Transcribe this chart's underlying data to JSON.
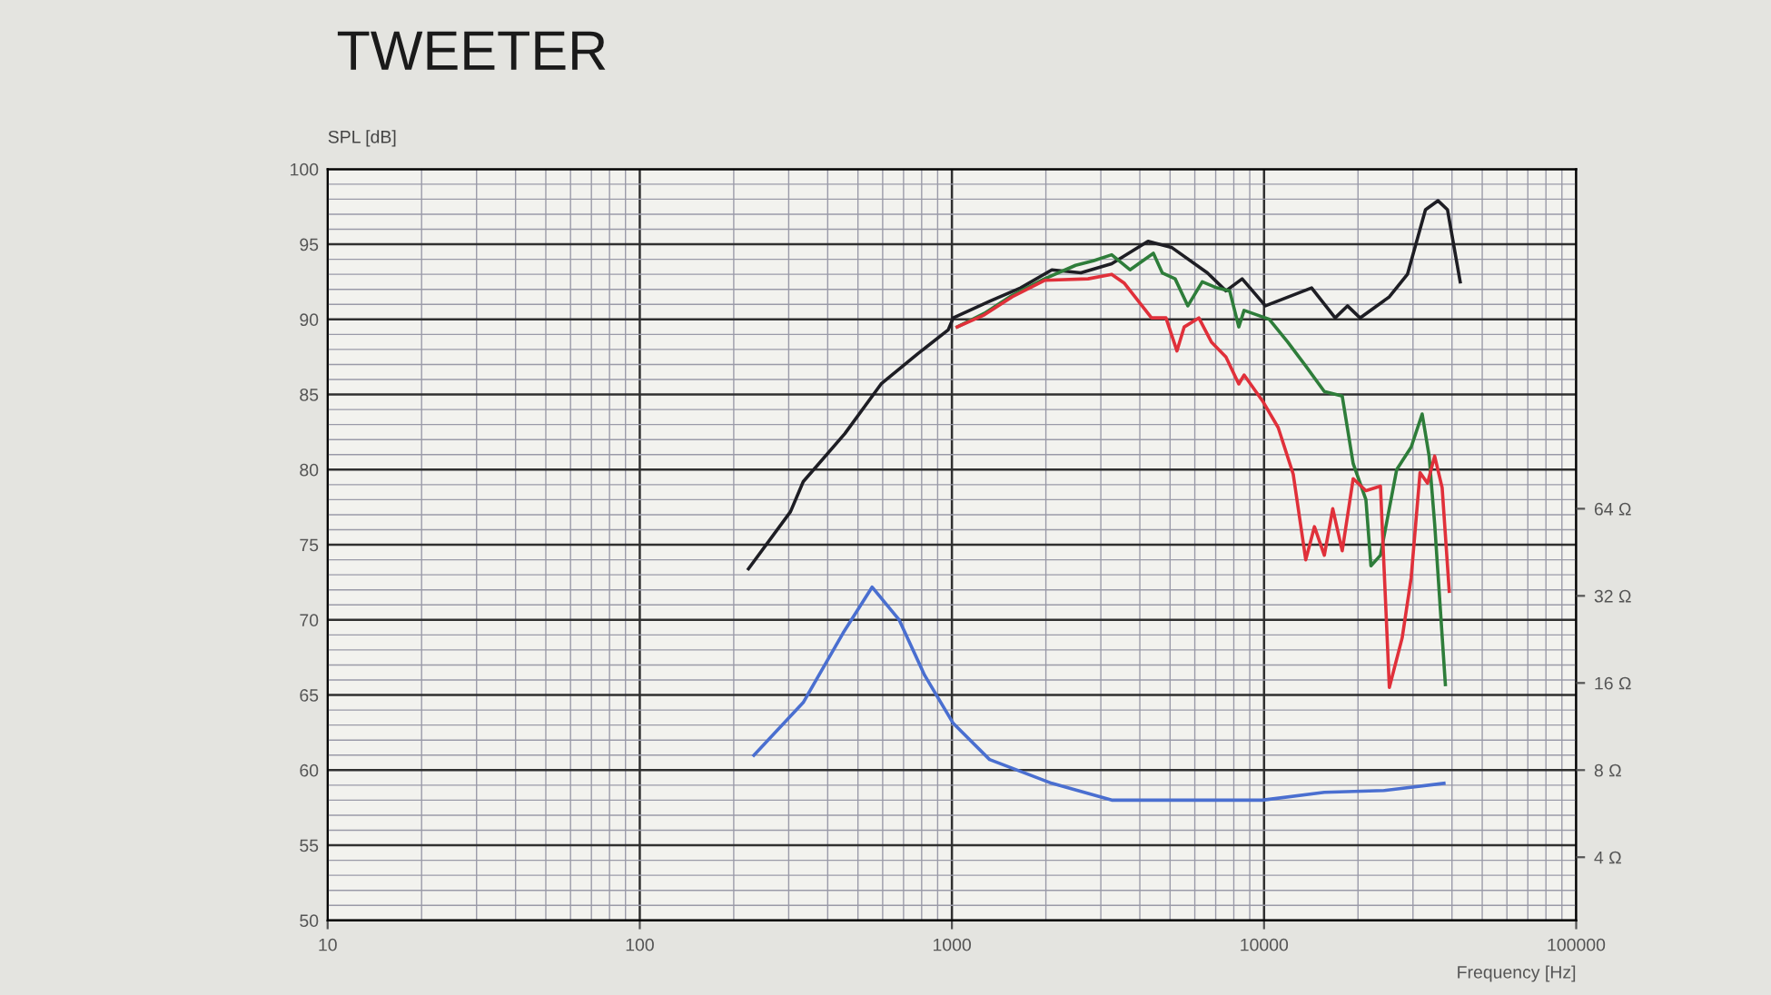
{
  "chart_data": [
    {
      "type": "line",
      "title": "TWEETER",
      "ylabel": "SPL [dB]",
      "xlabel": "Frequency [Hz]",
      "log": "x",
      "grid": true,
      "marker": "none",
      "line_style": "solid",
      "xlim": [
        10,
        100000
      ],
      "xticks": [
        10,
        100,
        1000,
        10000,
        100000
      ],
      "ylim": [
        50,
        100
      ],
      "yticks": [
        50,
        55,
        60,
        65,
        70,
        75,
        80,
        85,
        90,
        95,
        100
      ],
      "series": [
        {
          "color": "#1e1e24",
          "x": [
            223,
            304,
            334,
            454,
            593,
            776,
            973,
            1010,
            1320,
            1660,
            2090,
            2590,
            3250,
            4250,
            5050,
            6580,
            7550,
            8510,
            10100,
            14200,
            16900,
            18500,
            20300,
            25200,
            28800,
            32900,
            36100,
            38700,
            42500
          ],
          "values": [
            73.4,
            77.2,
            79.2,
            82.4,
            85.7,
            87.7,
            89.3,
            90.1,
            91.2,
            92.1,
            93.3,
            93.1,
            93.7,
            95.2,
            94.8,
            93.1,
            91.9,
            92.7,
            90.9,
            92.1,
            90.1,
            90.9,
            90.1,
            91.5,
            93.0,
            97.3,
            97.9,
            97.3,
            92.5
          ]
        },
        {
          "color": "#2e7d3a",
          "x": [
            1040,
            1270,
            1560,
            1980,
            2490,
            2840,
            3250,
            3720,
            4420,
            4720,
            5190,
            5700,
            6340,
            7060,
            7760,
            8300,
            8630,
            9490,
            10400,
            11900,
            13600,
            15600,
            17800,
            19300,
            21200,
            22000,
            23600,
            26600,
            29600,
            32100,
            33800,
            35200,
            38100
          ],
          "values": [
            89.5,
            90.4,
            91.6,
            92.7,
            93.6,
            93.9,
            94.3,
            93.3,
            94.4,
            93.1,
            92.7,
            90.9,
            92.5,
            92.1,
            91.9,
            89.5,
            90.6,
            90.3,
            90.0,
            88.5,
            86.9,
            85.2,
            84.9,
            80.4,
            78.0,
            73.6,
            74.3,
            80.0,
            81.5,
            83.7,
            80.9,
            76.4,
            65.7
          ]
        },
        {
          "color": "#e0303a",
          "x": [
            1040,
            1270,
            1560,
            1980,
            2730,
            3250,
            3570,
            4360,
            4850,
            5260,
            5550,
            6180,
            6780,
            7550,
            8300,
            8630,
            9870,
            11100,
            12400,
            13600,
            14500,
            15600,
            16600,
            17800,
            19300,
            21200,
            23600,
            25200,
            27700,
            29600,
            31600,
            33400,
            35200,
            37200,
            39200
          ],
          "values": [
            89.5,
            90.3,
            91.5,
            92.6,
            92.7,
            93.0,
            92.4,
            90.1,
            90.1,
            87.9,
            89.5,
            90.1,
            88.5,
            87.5,
            85.7,
            86.3,
            84.6,
            82.8,
            79.7,
            74.0,
            76.2,
            74.3,
            77.4,
            74.6,
            79.4,
            78.6,
            78.9,
            65.5,
            68.8,
            72.8,
            79.8,
            79.1,
            80.9,
            78.8,
            71.9
          ]
        }
      ]
    },
    {
      "type": "line",
      "log": "xy",
      "tick_labels": "y",
      "marker": "none",
      "line_style": "solid",
      "xlim": [
        10,
        100000
      ],
      "ylim": [
        2.42,
        954
      ],
      "yticks": [
        {
          "value": 4,
          "label": "4 Ω"
        },
        {
          "value": 8,
          "label": "8 Ω"
        },
        {
          "value": 16,
          "label": "16 Ω"
        },
        {
          "value": 32,
          "label": "32 Ω"
        },
        {
          "value": 64,
          "label": "64 Ω"
        }
      ],
      "series": [
        {
          "color": "#4a6fd0",
          "x": [
            232,
            334,
            448,
            555,
            678,
            818,
            1010,
            1320,
            2090,
            3250,
            6340,
            9870,
            15600,
            24200,
            37700
          ],
          "values": [
            9.0,
            13.7,
            23.8,
            34.3,
            26.4,
            17.0,
            11.6,
            8.7,
            7.2,
            6.3,
            6.3,
            6.3,
            6.7,
            6.8,
            7.2
          ]
        }
      ]
    }
  ]
}
